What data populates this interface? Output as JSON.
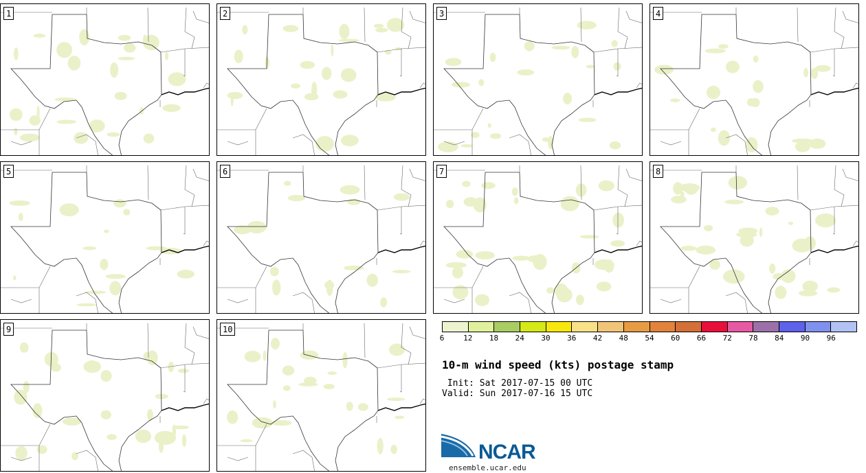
{
  "panels": [
    "1",
    "2",
    "3",
    "4",
    "5",
    "6",
    "7",
    "8",
    "9",
    "10"
  ],
  "colorbar": {
    "ticks": [
      "6",
      "12",
      "18",
      "24",
      "30",
      "36",
      "42",
      "48",
      "54",
      "60",
      "66",
      "72",
      "78",
      "84",
      "90",
      "96"
    ],
    "colors": [
      "#eef3cf",
      "#e1f09b",
      "#a9cc63",
      "#d5e818",
      "#f7e70c",
      "#f8e186",
      "#f0c577",
      "#e79c44",
      "#e2833b",
      "#d36f37",
      "#e8103b",
      "#e65aa3",
      "#9c71a9",
      "#5e61e9",
      "#8090ee",
      "#b1c2f3"
    ]
  },
  "title": "10-m wind speed (kts) postage stamp",
  "init": " Init: Sat 2017-07-15 00 UTC",
  "valid": "Valid: Sun 2017-07-16 15 UTC",
  "logo": {
    "text": "NCAR",
    "url": "ensemble.ucar.edu"
  }
}
